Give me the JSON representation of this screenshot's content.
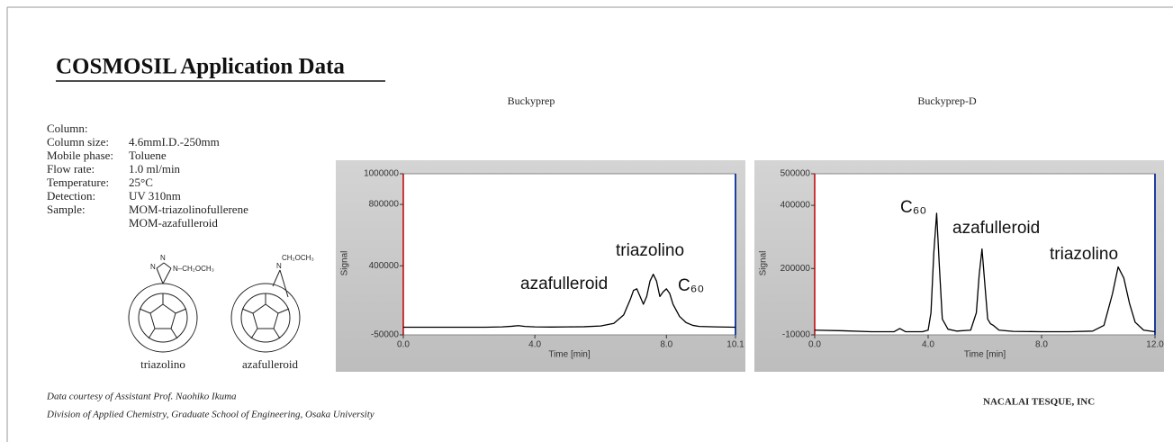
{
  "header": {
    "title": "COSMOSIL Application Data"
  },
  "conditions": [
    {
      "label": "Column:"
    },
    {
      "label": "Column size:",
      "value": "4.6mmI.D.-250mm"
    },
    {
      "label": "Mobile phase:",
      "value": "Toluene"
    },
    {
      "label": "Flow rate:",
      "value": "1.0 ml/min"
    },
    {
      "label": "Temperature:",
      "value": "25°C"
    },
    {
      "label": "Detection:",
      "value": "UV 310nm"
    },
    {
      "label": "Sample:",
      "value": "MOM-triazolinofullerene"
    },
    {
      "value": "MOM-azafulleroid"
    }
  ],
  "structures": [
    {
      "label": "triazolino",
      "groups": [
        "N",
        "N",
        "N–CH₂OCH₃"
      ]
    },
    {
      "label": "azafulleroid",
      "groups": [
        "N",
        "CH₂OCH₃"
      ]
    }
  ],
  "chart_data": [
    {
      "type": "line",
      "title": "Buckyprep",
      "x_label": "Time [min]",
      "y_label": "Signal",
      "color": "#000000",
      "x": [
        0,
        0.5,
        1,
        1.5,
        2,
        2.5,
        3,
        3.3,
        3.5,
        3.7,
        4,
        4.5,
        5,
        5.5,
        6,
        6.4,
        6.7,
        6.9,
        7.0,
        7.1,
        7.2,
        7.3,
        7.4,
        7.5,
        7.6,
        7.7,
        7.8,
        7.9,
        8.0,
        8.1,
        8.2,
        8.4,
        8.6,
        8.8,
        9.0,
        9.5,
        10.1
      ],
      "values": [
        0,
        0,
        0,
        0,
        0,
        0,
        2000,
        6000,
        10000,
        5000,
        2000,
        1000,
        2000,
        3000,
        8000,
        25000,
        80000,
        180000,
        240000,
        250000,
        200000,
        150000,
        200000,
        300000,
        345000,
        300000,
        200000,
        230000,
        250000,
        220000,
        150000,
        70000,
        30000,
        12000,
        5000,
        2000,
        0
      ],
      "xlim": [
        0,
        10.1
      ],
      "xticks": [
        {
          "value": 0,
          "label": "0.0"
        },
        {
          "value": 4,
          "label": "4.0"
        },
        {
          "value": 8,
          "label": "8.0"
        },
        10.1
      ],
      "ylim": [
        -50000,
        1000000
      ],
      "yticks": [
        1000000,
        800000,
        400000,
        -50000
      ],
      "annotations": [
        "azafulleroid",
        "triazolino",
        "C₆₀"
      ]
    },
    {
      "type": "line",
      "title": "Buckyprep-D",
      "x_label": "Time [min]",
      "y_label": "Signal",
      "color": "#000000",
      "x": [
        0,
        1,
        2,
        2.8,
        3.0,
        3.2,
        3.8,
        4.0,
        4.1,
        4.2,
        4.3,
        4.4,
        4.5,
        4.7,
        5.0,
        5.5,
        5.7,
        5.8,
        5.9,
        6.0,
        6.1,
        6.2,
        6.3,
        6.5,
        7,
        8,
        9,
        9.8,
        10.2,
        10.5,
        10.7,
        10.9,
        11.1,
        11.3,
        11.6,
        12
      ],
      "values": [
        5000,
        3000,
        0,
        0,
        10000,
        0,
        0,
        5000,
        60000,
        250000,
        375000,
        200000,
        40000,
        8000,
        2000,
        5000,
        60000,
        180000,
        262000,
        150000,
        40000,
        25000,
        20000,
        5000,
        1000,
        0,
        0,
        2000,
        20000,
        120000,
        205000,
        170000,
        90000,
        30000,
        5000,
        0
      ],
      "xlim": [
        0,
        12
      ],
      "xticks": [
        {
          "value": 0,
          "label": "0.0"
        },
        {
          "value": 4,
          "label": "4.0"
        },
        {
          "value": 8,
          "label": "8.0"
        },
        {
          "value": 12,
          "label": "12.0"
        }
      ],
      "ylim": [
        -10000,
        500000
      ],
      "yticks": [
        500000,
        400000,
        200000,
        -10000
      ],
      "annotations": [
        "C₆₀",
        "azafulleroid",
        "triazolino"
      ]
    }
  ],
  "footer": {
    "credit": [
      "Data courtesy of Assistant Prof. Naohiko Ikuma",
      "Division of Applied Chemistry, Graduate School of Engineering, Osaka University"
    ],
    "company": "NACALAI TESQUE, INC"
  }
}
